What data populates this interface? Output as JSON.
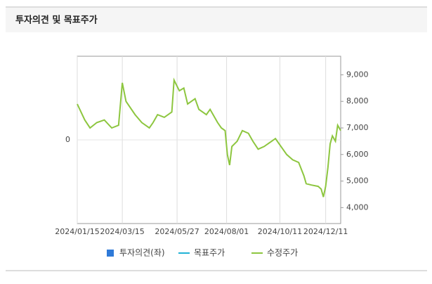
{
  "header": {
    "title": "투자의견 및 목표주가"
  },
  "chart_data": {
    "type": "line",
    "x": [
      "2024/01/15",
      "2024/01/25",
      "2024/02/01",
      "2024/02/10",
      "2024/02/20",
      "2024/03/01",
      "2024/03/10",
      "2024/03/15",
      "2024/03/20",
      "2024/04/01",
      "2024/04/10",
      "2024/04/20",
      "2024/04/25",
      "2024/05/01",
      "2024/05/10",
      "2024/05/20",
      "2024/05/23",
      "2024/05/30",
      "2024/06/05",
      "2024/06/10",
      "2024/06/20",
      "2024/06/25",
      "2024/07/05",
      "2024/07/10",
      "2024/07/20",
      "2024/07/25",
      "2024/07/30",
      "2024/08/02",
      "2024/08/05",
      "2024/08/08",
      "2024/08/15",
      "2024/08/22",
      "2024/08/30",
      "2024/09/05",
      "2024/09/12",
      "2024/09/20",
      "2024/09/30",
      "2024/10/05",
      "2024/10/10",
      "2024/10/20",
      "2024/10/28",
      "2024/11/05",
      "2024/11/12",
      "2024/11/15",
      "2024/11/22",
      "2024/12/01",
      "2024/12/05",
      "2024/12/08",
      "2024/12/11",
      "2024/12/14",
      "2024/12/17",
      "2024/12/20",
      "2024/12/24",
      "2024/12/27",
      "2024/12/31"
    ],
    "series": [
      {
        "name": "투자의견(좌)",
        "color": "#2f7ad8"
      },
      {
        "name": "목표주가",
        "color": "#21b3d6",
        "axis": "y2"
      },
      {
        "name": "수정주가",
        "color": "#8dc63f",
        "axis": "y2",
        "values": [
          7900,
          7300,
          7000,
          7200,
          7300,
          7000,
          7100,
          8700,
          8000,
          7500,
          7200,
          7000,
          7200,
          7500,
          7400,
          7600,
          8800,
          8400,
          8500,
          7900,
          8100,
          7700,
          7500,
          7700,
          7200,
          7000,
          6900,
          6000,
          5600,
          6300,
          6500,
          6900,
          6800,
          6500,
          6200,
          6300,
          6500,
          6600,
          6400,
          6000,
          5800,
          5700,
          5200,
          4900,
          4850,
          4800,
          4700,
          4400,
          4800,
          5500,
          6400,
          6700,
          6500,
          7100,
          6900
        ]
      }
    ],
    "xlim": [
      "2024/01/15",
      "2024/12/31"
    ],
    "xticks": [
      "2024/01/15",
      "2024/03/15",
      "2024/05/27",
      "2024/08/01",
      "2024/10/11",
      "2024/12/11"
    ],
    "ylim": [
      -1,
      1
    ],
    "yticks": [
      0
    ],
    "y2lim": [
      3400,
      9700
    ],
    "y2ticks": [
      {
        "value": 4000,
        "label": "4,000"
      },
      {
        "value": 5000,
        "label": "5,000"
      },
      {
        "value": 6000,
        "label": "6,000"
      },
      {
        "value": 7000,
        "label": "7,000"
      },
      {
        "value": 8000,
        "label": "8,000"
      },
      {
        "value": 9000,
        "label": "9,000"
      }
    ],
    "grid": true
  }
}
